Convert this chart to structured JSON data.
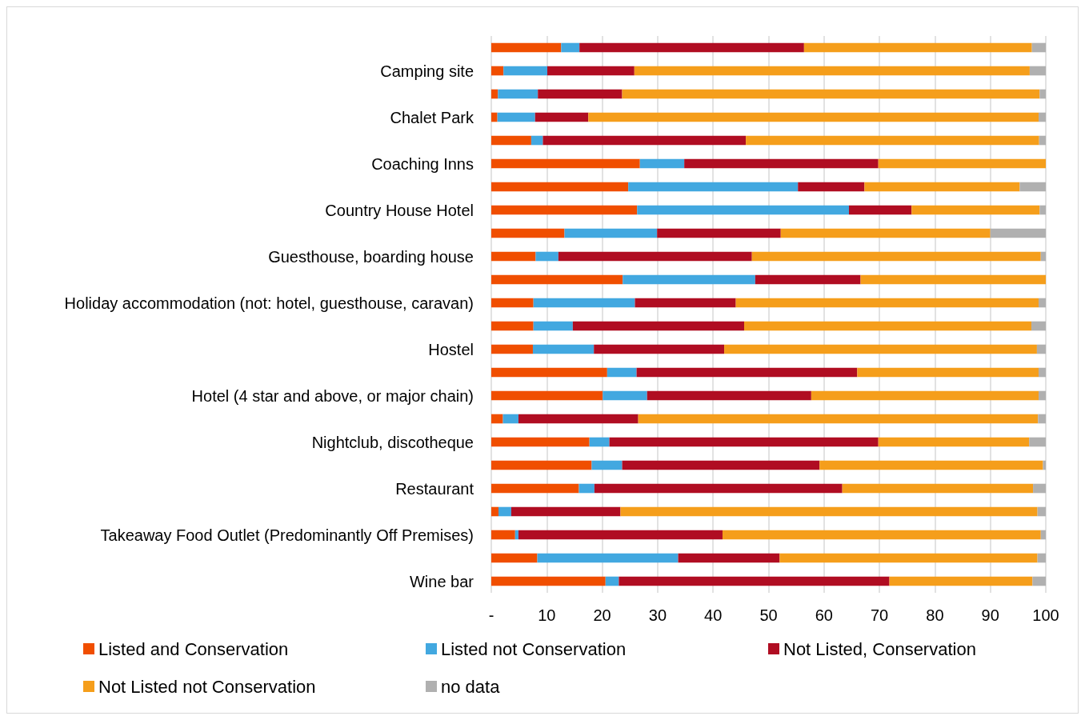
{
  "chart_data": {
    "type": "bar",
    "orientation": "horizontal",
    "stacked": true,
    "categories": [
      null,
      "Camping site",
      null,
      "Chalet Park",
      null,
      "Coaching Inns",
      null,
      "Country House Hotel",
      null,
      "Guesthouse, boarding house",
      null,
      "Holiday accommodation (not: hotel, guesthouse, caravan)",
      null,
      "Hostel",
      null,
      "Hotel (4 star and above, or major chain)",
      null,
      "Nightclub, discotheque",
      null,
      "Restaurant",
      null,
      "Takeaway Food Outlet (Predominantly Off Premises)",
      null,
      "Wine bar"
    ],
    "series": [
      {
        "name": "Listed and Conservation",
        "color": "#f04e00",
        "values": [
          12.6,
          2.2,
          1.2,
          1.1,
          7.2,
          26.8,
          24.7,
          26.3,
          13.2,
          8.0,
          23.7,
          7.6,
          7.6,
          7.5,
          20.9,
          20.1,
          2.1,
          17.7,
          18.1,
          15.8,
          1.3,
          4.3,
          8.3,
          20.6
        ]
      },
      {
        "name": "Listed not Conservation",
        "color": "#42a8e0",
        "values": [
          3.3,
          7.9,
          7.2,
          6.8,
          2.1,
          8.0,
          30.6,
          38.2,
          16.7,
          4.1,
          23.9,
          18.3,
          7.1,
          11.0,
          5.3,
          8.0,
          2.8,
          3.6,
          5.5,
          2.8,
          2.3,
          0.6,
          25.4,
          2.4
        ]
      },
      {
        "name": "Not Listed, Conservation",
        "color": "#b00d22",
        "values": [
          40.5,
          15.7,
          15.2,
          9.6,
          36.6,
          35.0,
          12.0,
          11.3,
          22.3,
          34.9,
          19.0,
          18.2,
          30.9,
          23.5,
          39.8,
          29.6,
          21.6,
          48.5,
          35.6,
          44.7,
          19.7,
          36.8,
          18.3,
          48.8
        ]
      },
      {
        "name": "Not Listed not Conservation",
        "color": "#f59e1b",
        "values": [
          41.1,
          71.3,
          75.3,
          81.2,
          52.9,
          30.2,
          28.0,
          23.1,
          37.8,
          52.1,
          33.4,
          54.6,
          51.8,
          56.4,
          32.7,
          41.0,
          72.1,
          27.2,
          40.3,
          34.4,
          75.2,
          57.4,
          46.5,
          25.8
        ]
      },
      {
        "name": "no data",
        "color": "#b0b0b0",
        "values": [
          2.5,
          2.9,
          1.1,
          1.3,
          1.2,
          0,
          4.7,
          1.1,
          10.0,
          0.9,
          0,
          1.3,
          2.6,
          1.6,
          1.3,
          1.3,
          1.4,
          3.0,
          0.5,
          2.3,
          1.5,
          0.9,
          1.5,
          2.4
        ]
      }
    ],
    "xlim": [
      0,
      100
    ],
    "xticks": [
      {
        "value": 0,
        "label": "-"
      },
      10,
      20,
      30,
      40,
      50,
      60,
      70,
      80,
      90,
      100
    ],
    "grid": "x",
    "legend": "bottom"
  }
}
